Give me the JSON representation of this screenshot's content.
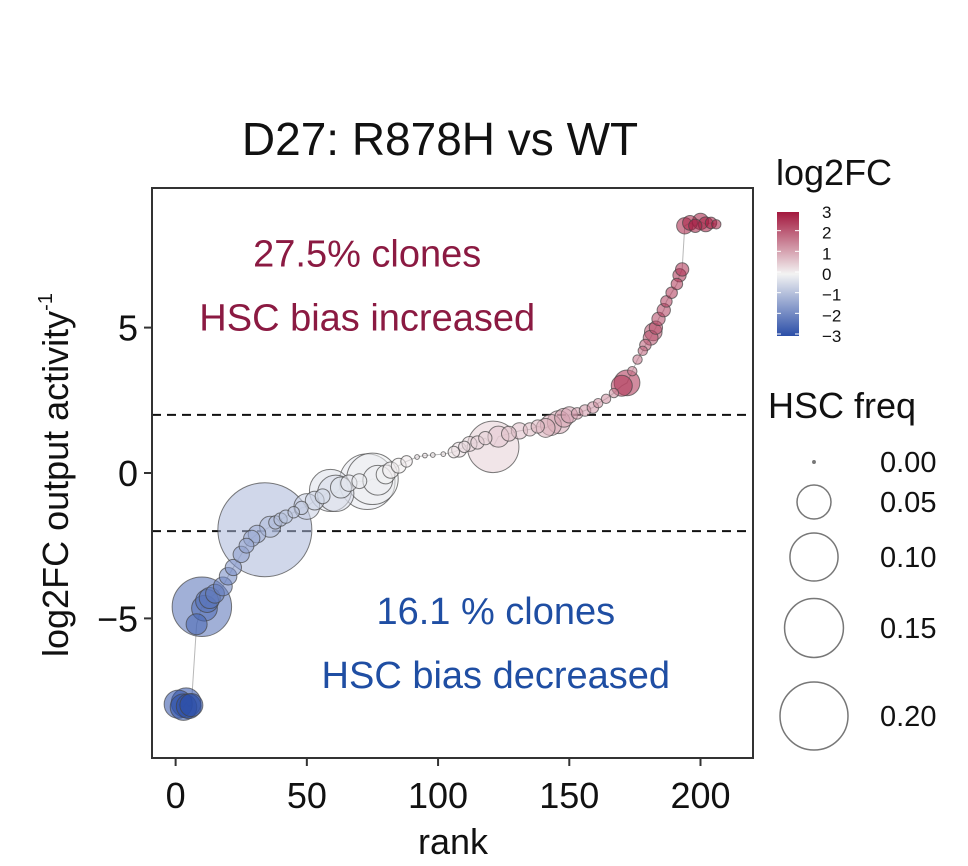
{
  "chart_data": {
    "type": "scatter",
    "title": "D27: R878H vs WT",
    "xlabel": "rank",
    "ylabel": "log2FC output activity",
    "ylabel_superscript": "-1",
    "xlim": [
      -9,
      220
    ],
    "ylim": [
      -9.8,
      9.8
    ],
    "xticks": [
      0,
      50,
      100,
      150,
      200
    ],
    "xtick_labels": [
      "0",
      "50",
      "100",
      "150",
      "200"
    ],
    "yticks": [
      -5,
      0,
      5
    ],
    "ytick_labels": [
      "−5",
      "0",
      "5"
    ],
    "hlines": [
      2,
      -2
    ],
    "annotations": [
      {
        "lines": [
          "27.5% clones",
          "HSC bias increased"
        ],
        "color": "#8b1a42",
        "x": 73,
        "y": [
          7.1,
          4.9
        ]
      },
      {
        "lines": [
          "16.1 % clones",
          "HSC bias decreased"
        ],
        "color": "#1f4ea3",
        "x": 122,
        "y": [
          -5.2,
          -7.4
        ]
      }
    ],
    "color_legend": {
      "title": "log2FC",
      "range": [
        -3,
        3
      ],
      "ticks": [
        "3",
        "2",
        "1",
        "0",
        "−1",
        "−2",
        "−3"
      ],
      "colors": {
        "low": "#2b4ea8",
        "mid": "#f3f3f3",
        "high": "#a3183e"
      }
    },
    "size_legend": {
      "title": "HSC freq",
      "values": [
        0.0,
        0.05,
        0.1,
        0.15,
        0.2
      ],
      "labels": [
        "0.00",
        "0.05",
        "0.10",
        "0.15",
        "0.20"
      ]
    },
    "points": [
      [
        1,
        -7.95,
        0.018,
        -3
      ],
      [
        3,
        -8.05,
        0.016,
        -3
      ],
      [
        4,
        -7.9,
        0.02,
        -3
      ],
      [
        5,
        -8.02,
        0.014,
        -3
      ],
      [
        6,
        -7.98,
        0.012,
        -3
      ],
      [
        8,
        -5.2,
        0.01,
        -2.6
      ],
      [
        10,
        -4.6,
        0.08,
        -2.4
      ],
      [
        11,
        -4.65,
        0.015,
        -2.5
      ],
      [
        12,
        -4.4,
        0.012,
        -2.4
      ],
      [
        13,
        -4.3,
        0.01,
        -2.3
      ],
      [
        15,
        -4.15,
        0.008,
        -2.2
      ],
      [
        18,
        -3.9,
        0.008,
        -2.1
      ],
      [
        20,
        -3.55,
        0.007,
        -2.0
      ],
      [
        22,
        -3.25,
        0.006,
        -1.8
      ],
      [
        25,
        -2.8,
        0.006,
        -1.6
      ],
      [
        27,
        -2.5,
        0.005,
        -1.5
      ],
      [
        29,
        -2.25,
        0.006,
        -1.4
      ],
      [
        31,
        -2.1,
        0.007,
        -1.3
      ],
      [
        34,
        -1.95,
        0.2,
        -1.1
      ],
      [
        36,
        -1.85,
        0.01,
        -1.05
      ],
      [
        38,
        -1.7,
        0.004,
        -1.0
      ],
      [
        40,
        -1.6,
        0.004,
        -0.95
      ],
      [
        42,
        -1.5,
        0.004,
        -0.9
      ],
      [
        45,
        -1.35,
        0.003,
        -0.8
      ],
      [
        48,
        -1.2,
        0.004,
        -0.7
      ],
      [
        50,
        -1.15,
        0.015,
        -0.65
      ],
      [
        53,
        -0.95,
        0.008,
        -0.55
      ],
      [
        56,
        -0.8,
        0.005,
        -0.5
      ],
      [
        59,
        -0.6,
        0.04,
        -0.35
      ],
      [
        61,
        -0.7,
        0.03,
        -0.4
      ],
      [
        63,
        -0.5,
        0.01,
        -0.3
      ],
      [
        66,
        -0.35,
        0.006,
        -0.2
      ],
      [
        70,
        -0.28,
        0.005,
        -0.15
      ],
      [
        73,
        -0.3,
        0.07,
        -0.2
      ],
      [
        75,
        -0.2,
        0.06,
        -0.1
      ],
      [
        77,
        -0.25,
        0.02,
        -0.1
      ],
      [
        80,
        -0.05,
        0.008,
        0.0
      ],
      [
        82,
        0.1,
        0.006,
        0.05
      ],
      [
        85,
        0.25,
        0.005,
        0.1
      ],
      [
        88,
        0.4,
        0.003,
        0.15
      ],
      [
        92,
        0.55,
        0.0005,
        0.2
      ],
      [
        95,
        0.6,
        0.0005,
        0.2
      ],
      [
        98,
        0.62,
        0.0005,
        0.22
      ],
      [
        102,
        0.65,
        0.0005,
        0.24
      ],
      [
        106,
        0.72,
        0.003,
        0.25
      ],
      [
        108,
        0.8,
        0.005,
        0.3
      ],
      [
        110,
        0.9,
        0.003,
        0.35
      ],
      [
        112,
        1.0,
        0.005,
        0.4
      ],
      [
        115,
        1.05,
        0.004,
        0.45
      ],
      [
        118,
        1.2,
        0.004,
        0.5
      ],
      [
        121,
        0.9,
        0.06,
        0.5
      ],
      [
        123,
        1.25,
        0.01,
        0.6
      ],
      [
        127,
        1.35,
        0.005,
        0.7
      ],
      [
        131,
        1.45,
        0.006,
        0.75
      ],
      [
        135,
        1.5,
        0.004,
        0.8
      ],
      [
        138,
        1.6,
        0.004,
        0.85
      ],
      [
        141,
        1.55,
        0.008,
        0.95
      ],
      [
        143,
        1.65,
        0.01,
        1.0
      ],
      [
        146,
        1.75,
        0.012,
        1.05
      ],
      [
        148,
        1.9,
        0.008,
        1.1
      ],
      [
        150,
        2.0,
        0.006,
        1.15
      ],
      [
        153,
        2.05,
        0.003,
        1.2
      ],
      [
        156,
        2.15,
        0.003,
        1.25
      ],
      [
        159,
        2.25,
        0.003,
        1.3
      ],
      [
        161,
        2.4,
        0.002,
        1.35
      ],
      [
        164,
        2.55,
        0.002,
        1.4
      ],
      [
        167,
        2.75,
        0.002,
        1.5
      ],
      [
        170,
        3.0,
        0.01,
        2.6
      ],
      [
        172,
        3.1,
        0.015,
        2.7
      ],
      [
        174,
        3.5,
        0.002,
        1.7
      ],
      [
        176,
        3.9,
        0.002,
        1.8
      ],
      [
        178,
        4.2,
        0.002,
        2.0
      ],
      [
        179,
        4.4,
        0.003,
        2.1
      ],
      [
        181,
        4.65,
        0.005,
        2.2
      ],
      [
        182,
        4.85,
        0.007,
        2.3
      ],
      [
        183,
        5.0,
        0.004,
        2.3
      ],
      [
        184,
        5.3,
        0.004,
        2.4
      ],
      [
        186,
        5.6,
        0.004,
        2.5
      ],
      [
        187,
        5.9,
        0.003,
        2.5
      ],
      [
        189,
        6.2,
        0.003,
        2.6
      ],
      [
        191,
        6.5,
        0.003,
        2.6
      ],
      [
        192,
        6.8,
        0.004,
        2.7
      ],
      [
        193,
        7.0,
        0.004,
        2.7
      ],
      [
        194,
        8.5,
        0.006,
        2.9
      ],
      [
        196,
        8.6,
        0.005,
        2.9
      ],
      [
        198,
        8.5,
        0.004,
        2.95
      ],
      [
        200,
        8.65,
        0.006,
        3.0
      ],
      [
        202,
        8.55,
        0.005,
        3.0
      ],
      [
        204,
        8.6,
        0.003,
        3.0
      ],
      [
        206,
        8.55,
        0.002,
        3.0
      ]
    ]
  }
}
